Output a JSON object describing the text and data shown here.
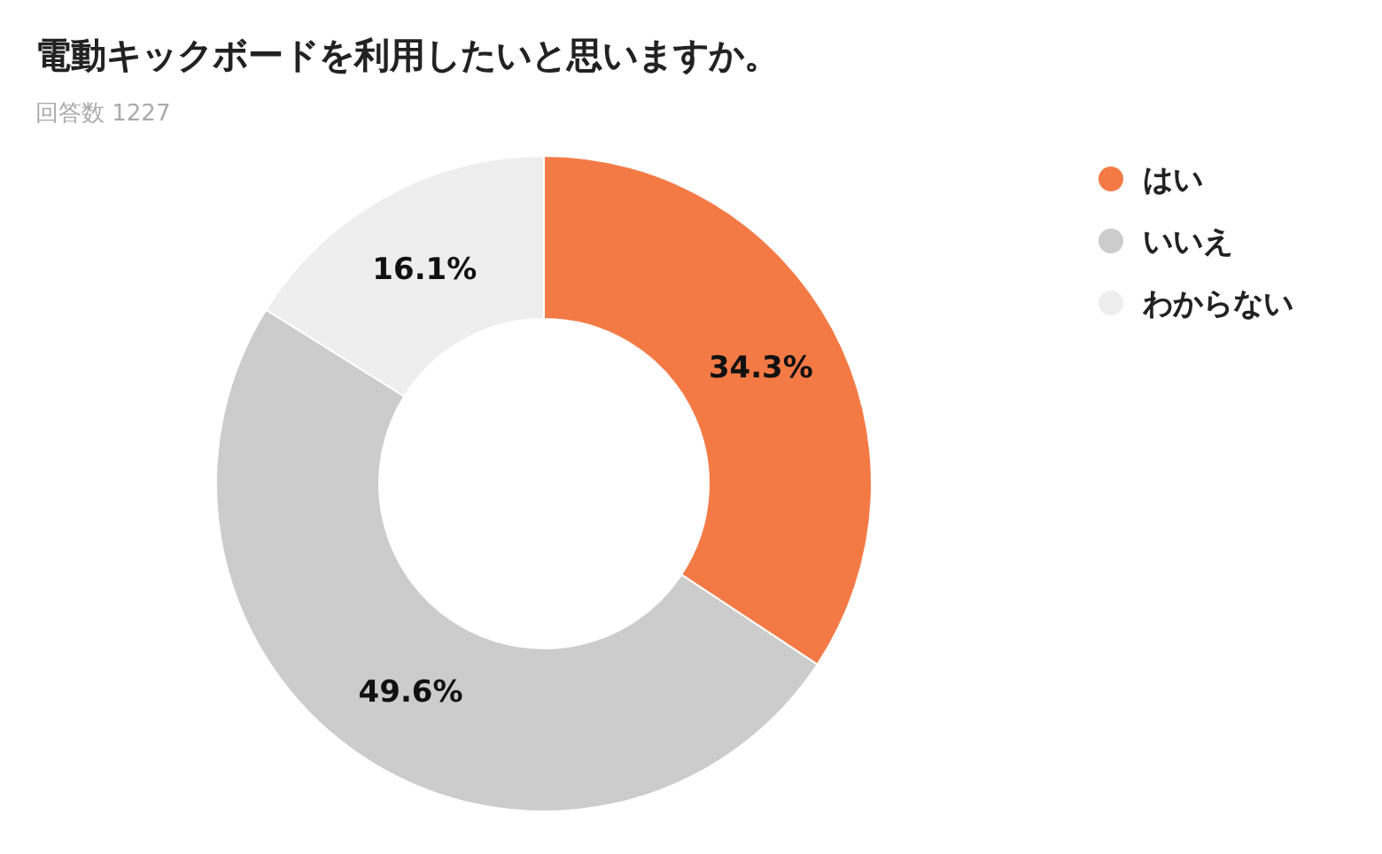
{
  "chart_data": {
    "type": "donut",
    "title": "電動キックボードを利用したいと思いますか。",
    "subtitle": "回答数 1227",
    "categories": [
      "はい",
      "いいえ",
      "わからない"
    ],
    "values": [
      34.3,
      49.6,
      16.1
    ],
    "colors": [
      "#f47a45",
      "#cccccc",
      "#eeeeee"
    ],
    "value_labels": [
      "34.3%",
      "49.6%",
      "16.1%"
    ],
    "legend": "top right"
  }
}
